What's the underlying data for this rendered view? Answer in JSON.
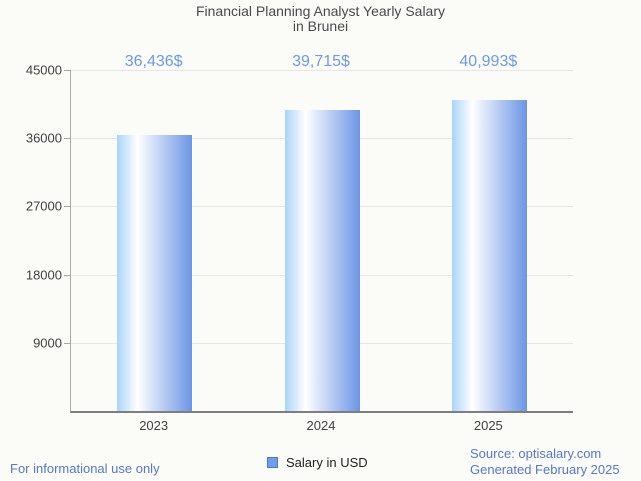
{
  "title": {
    "line1": "Financial Planning Analyst Yearly Salary",
    "line2": "in Brunei"
  },
  "chart_data": {
    "type": "bar",
    "title": "Financial Planning Analyst Yearly Salary in Brunei",
    "categories": [
      "2023",
      "2024",
      "2025"
    ],
    "series": [
      {
        "name": "Salary in USD",
        "values": [
          36436,
          39715,
          40993
        ]
      }
    ],
    "annotations": [
      "36,436$",
      "39,715$",
      "40,993$"
    ],
    "xlabel": "",
    "ylabel": "",
    "ylim": [
      0,
      45000
    ],
    "yticks": [
      9000,
      18000,
      27000,
      36000,
      45000
    ],
    "grid": true,
    "legend_position": "bottom",
    "colors": {
      "background": "#fbfbf8",
      "bar_gradient_left": "#aad4f9",
      "bar_gradient_mid": "#ffffff",
      "bar_gradient_right": "#6b95e5",
      "annotation": "#6d9ae4",
      "legend_swatch_fill": "#6d9eeb",
      "legend_swatch_border": "#4b7ac2",
      "axis_text": "#414141",
      "title_text": "#4a4a4a",
      "grid_line": "#e6e6e6",
      "axis_line": "#a8a8a8",
      "baseline": "#7e7e7e",
      "footer_link": "#5577cc"
    }
  },
  "legend": {
    "label": "Salary in USD"
  },
  "footer": {
    "disclaimer": "For informational use only",
    "source": "Source: optisalary.com",
    "generated": "Generated February 2025"
  }
}
